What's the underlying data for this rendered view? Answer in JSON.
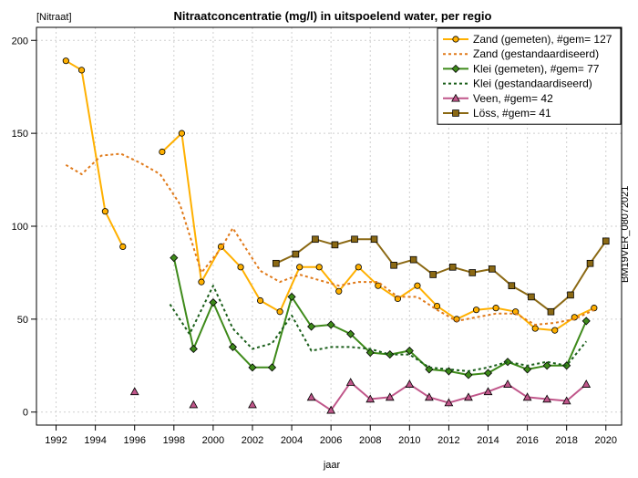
{
  "chart_data": {
    "type": "line",
    "title": "Nitraatconcentratie (mg/l) in uitspoelend water, per regio",
    "ylabel": "[Nitraat]",
    "xlabel": "jaar",
    "watermark": "BM19VER_08072021",
    "xlim": [
      1991.0,
      2020.8
    ],
    "ylim": [
      -7,
      207
    ],
    "xticks": [
      1992,
      1994,
      1996,
      1998,
      2000,
      2002,
      2004,
      2006,
      2008,
      2010,
      2012,
      2014,
      2016,
      2018,
      2020
    ],
    "yticks": [
      0,
      50,
      100,
      150,
      200
    ],
    "grid": true,
    "legend_position": "top-right",
    "series": [
      {
        "name": "Zand (gemeten), #gem= 127",
        "style": "solid-circle",
        "color": "#ffb000",
        "segments": [
          [
            [
              1992.5,
              189
            ],
            [
              1993.3,
              184
            ],
            [
              1994.5,
              108
            ],
            [
              1995.4,
              89
            ]
          ],
          [
            [
              1997.4,
              140
            ],
            [
              1998.4,
              150
            ],
            [
              1999.4,
              70
            ],
            [
              2000.4,
              89
            ],
            [
              2001.4,
              78
            ],
            [
              2002.4,
              60
            ],
            [
              2003.4,
              54
            ],
            [
              2004.4,
              78
            ],
            [
              2005.4,
              78
            ],
            [
              2006.4,
              65
            ],
            [
              2007.4,
              78
            ],
            [
              2008.4,
              68
            ],
            [
              2009.4,
              61
            ],
            [
              2010.4,
              68
            ],
            [
              2011.4,
              57
            ],
            [
              2012.4,
              50
            ],
            [
              2013.4,
              55
            ],
            [
              2014.4,
              56
            ],
            [
              2015.4,
              54
            ],
            [
              2016.4,
              45
            ],
            [
              2017.4,
              44
            ],
            [
              2018.4,
              51
            ],
            [
              2019.4,
              56
            ]
          ]
        ]
      },
      {
        "name": "Zand (gestandaardiseerd)",
        "style": "dotted",
        "color": "#e07a1a",
        "segments": [
          [
            [
              1992.5,
              133
            ],
            [
              1993.3,
              128
            ],
            [
              1994.3,
              138
            ],
            [
              1995.3,
              139
            ],
            [
              1996.3,
              134
            ],
            [
              1997.3,
              128
            ],
            [
              1998.3,
              112
            ],
            [
              1999.4,
              75
            ],
            [
              2000.4,
              88
            ],
            [
              2001.0,
              99
            ],
            [
              2002.4,
              76
            ],
            [
              2003.4,
              70
            ],
            [
              2004.4,
              74
            ],
            [
              2005.4,
              71
            ],
            [
              2006.4,
              68
            ],
            [
              2007.4,
              70
            ],
            [
              2008.4,
              70
            ],
            [
              2009.4,
              62
            ],
            [
              2010.4,
              62
            ],
            [
              2011.4,
              55
            ],
            [
              2012.4,
              49
            ],
            [
              2013.4,
              51
            ],
            [
              2014.4,
              53
            ],
            [
              2015.4,
              53
            ],
            [
              2016.4,
              47
            ],
            [
              2017.4,
              48
            ],
            [
              2018.4,
              50
            ],
            [
              2019.4,
              55
            ]
          ]
        ]
      },
      {
        "name": "Klei (gemeten), #gem= 77",
        "style": "solid-diamond",
        "color": "#3e8a1a",
        "segments": [
          [
            [
              1998.0,
              83
            ],
            [
              1999.0,
              34
            ],
            [
              2000.0,
              59
            ],
            [
              2001.0,
              35
            ],
            [
              2002.0,
              24
            ],
            [
              2003.0,
              24
            ],
            [
              2004.0,
              62
            ],
            [
              2005.0,
              46
            ],
            [
              2006.0,
              47
            ],
            [
              2007.0,
              42
            ],
            [
              2008.0,
              32
            ],
            [
              2009.0,
              31
            ],
            [
              2010.0,
              33
            ],
            [
              2011.0,
              23
            ],
            [
              2012.0,
              22
            ],
            [
              2013.0,
              20
            ],
            [
              2014.0,
              21
            ],
            [
              2015.0,
              27
            ],
            [
              2016.0,
              23
            ],
            [
              2017.0,
              25
            ],
            [
              2018.0,
              25
            ],
            [
              2019.0,
              49
            ]
          ]
        ]
      },
      {
        "name": "Klei (gestandaardiseerd)",
        "style": "dotted",
        "color": "#1a5e1a",
        "segments": [
          [
            [
              1997.8,
              58
            ],
            [
              1998.8,
              42
            ],
            [
              2000.0,
              68
            ],
            [
              2001.0,
              45
            ],
            [
              2002.0,
              34
            ],
            [
              2003.0,
              37
            ],
            [
              2004.0,
              52
            ],
            [
              2005.0,
              33
            ],
            [
              2006.0,
              35
            ],
            [
              2007.0,
              35
            ],
            [
              2008.0,
              34
            ],
            [
              2009.0,
              31
            ],
            [
              2010.0,
              31
            ],
            [
              2011.0,
              24
            ],
            [
              2012.0,
              23
            ],
            [
              2013.0,
              22
            ],
            [
              2014.0,
              24
            ],
            [
              2015.0,
              27
            ],
            [
              2016.0,
              25
            ],
            [
              2017.0,
              27
            ],
            [
              2018.0,
              25
            ],
            [
              2019.0,
              38
            ]
          ]
        ]
      },
      {
        "name": "Veen, #gem= 42",
        "style": "solid-triangle",
        "color": "#c0568a",
        "segments": [
          [
            [
              1996.0,
              11
            ]
          ],
          [
            [
              1999.0,
              4
            ]
          ],
          [
            [
              2002.0,
              4
            ]
          ],
          [
            [
              2005.0,
              8
            ],
            [
              2006.0,
              1
            ],
            [
              2007.0,
              16
            ],
            [
              2008.0,
              7
            ],
            [
              2009.0,
              8
            ],
            [
              2010.0,
              15
            ],
            [
              2011.0,
              8
            ],
            [
              2012.0,
              5
            ],
            [
              2013.0,
              8
            ],
            [
              2014.0,
              11
            ],
            [
              2015.0,
              15
            ],
            [
              2016.0,
              8
            ],
            [
              2017.0,
              7
            ],
            [
              2018.0,
              6
            ],
            [
              2019.0,
              15
            ]
          ]
        ]
      },
      {
        "name": "Löss, #gem= 41",
        "style": "solid-square",
        "color": "#8b6914",
        "segments": [
          [
            [
              2003.2,
              80
            ],
            [
              2004.2,
              85
            ],
            [
              2005.2,
              93
            ],
            [
              2006.2,
              90
            ],
            [
              2007.2,
              93
            ],
            [
              2008.2,
              93
            ],
            [
              2009.2,
              79
            ],
            [
              2010.2,
              82
            ],
            [
              2011.2,
              74
            ],
            [
              2012.2,
              78
            ],
            [
              2013.2,
              75
            ],
            [
              2014.2,
              77
            ],
            [
              2015.2,
              68
            ],
            [
              2016.2,
              62
            ],
            [
              2017.2,
              54
            ],
            [
              2018.2,
              63
            ],
            [
              2019.2,
              80
            ],
            [
              2020.0,
              92
            ]
          ]
        ]
      }
    ]
  }
}
